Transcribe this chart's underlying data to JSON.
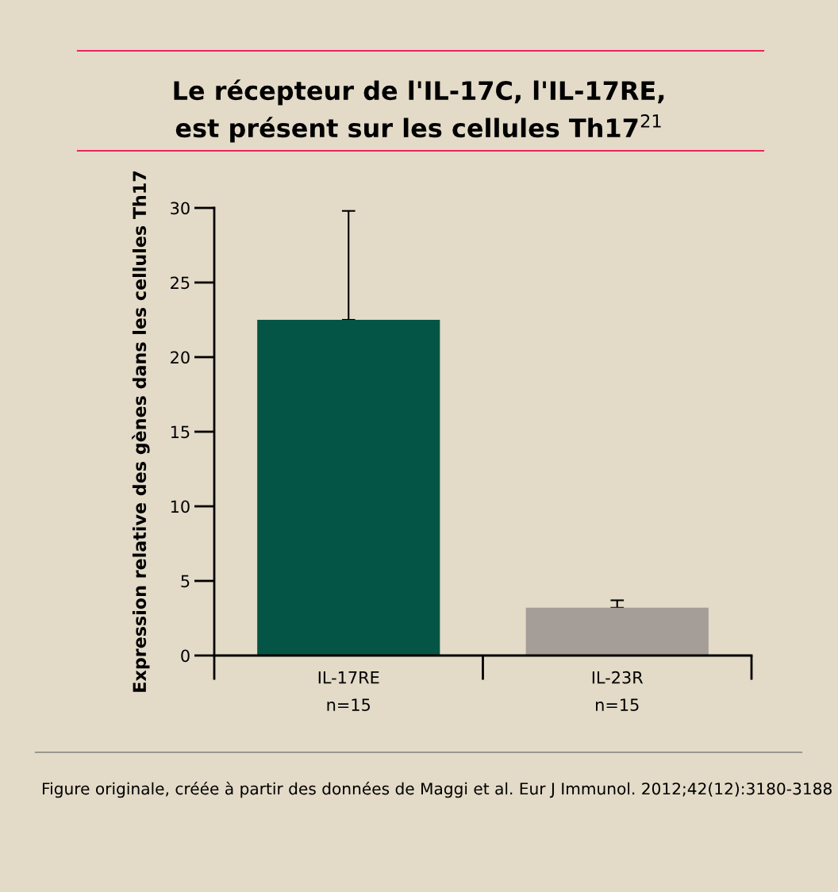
{
  "chart_data": {
    "type": "bar",
    "title": "Le récepteur de l'IL-17C, l'IL-17RE,\nest présent sur les cellules Th17$^{21}$",
    "ylabel": "Expression relative des gènes dans les cellules Th17",
    "categories": [
      "IL-17RE\nn=15",
      "IL-23R\nn=15"
    ],
    "values": [
      22.5,
      3.2
    ],
    "colors": [
      "#055546",
      "#a59d98"
    ],
    "errors": [
      [
        22.5,
        29.8
      ],
      [
        3.2,
        3.7
      ]
    ],
    "ylim": [
      0,
      30
    ],
    "yticks": [
      0,
      5,
      10,
      15,
      20,
      25,
      30
    ],
    "grid": false,
    "annotations": [
      "Figure originale, créée à partir des données de Maggi et al. Eur J Immunol. 2012;42(12):3180-3188"
    ]
  }
}
